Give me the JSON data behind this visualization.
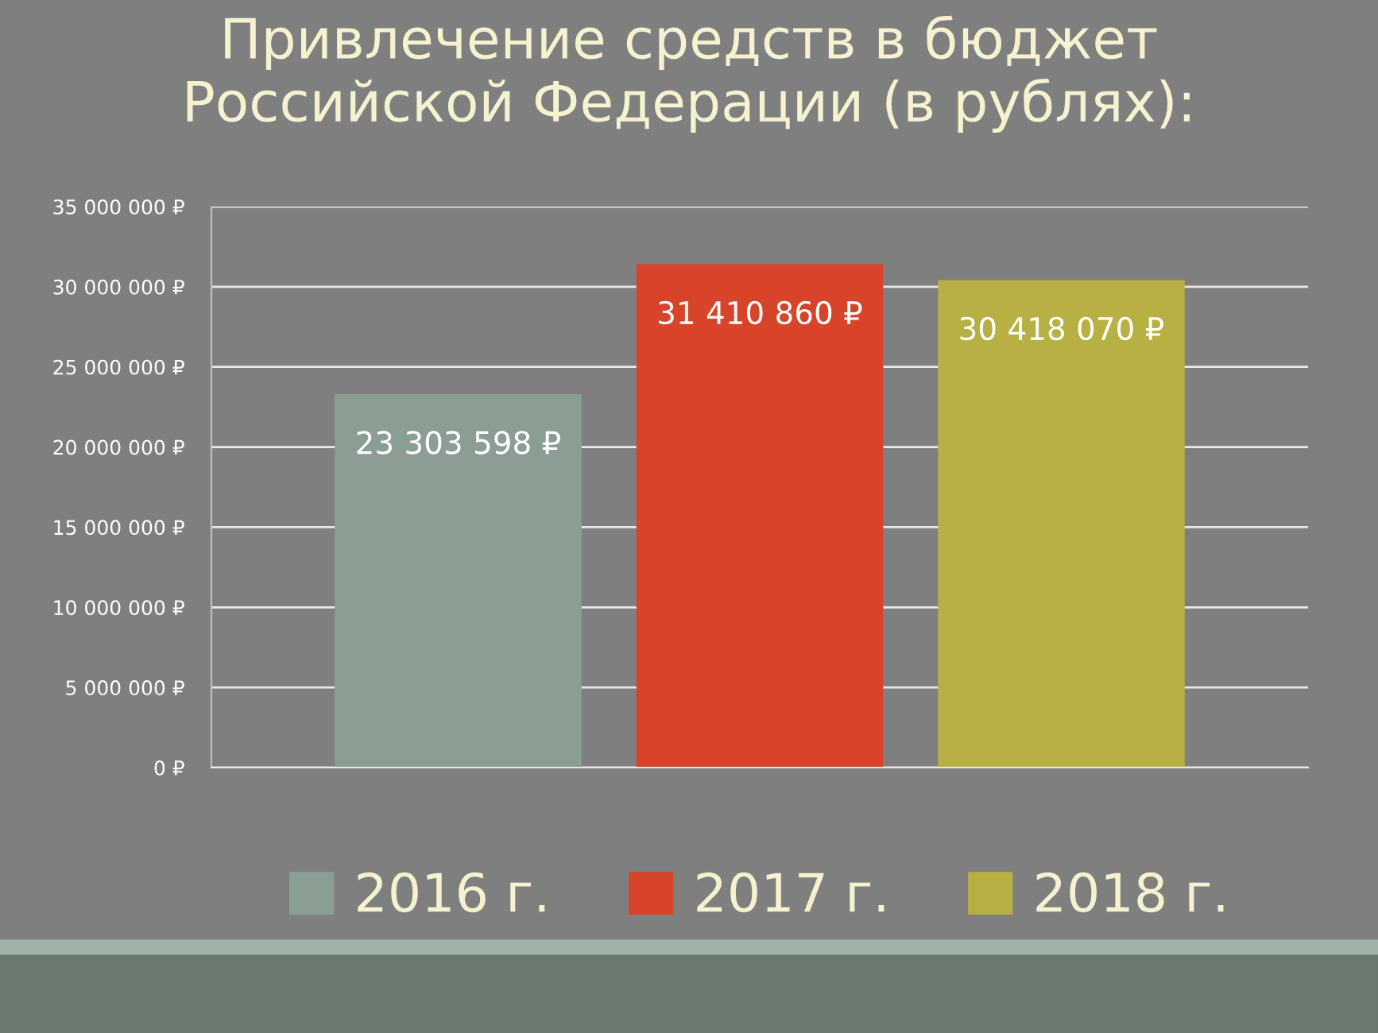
{
  "chart_data": {
    "type": "bar",
    "title": "Привлечение средств в бюджет\nРоссийской Федерации (в рублях):",
    "categories": [
      null
    ],
    "series": [
      {
        "name": "2016 г.",
        "color": "#8a9e94",
        "values": [
          23303598
        ],
        "value_labels": [
          "23 303 598 ₽"
        ]
      },
      {
        "name": "2017 г.",
        "color": "#d8442a",
        "values": [
          31410860
        ],
        "value_labels": [
          "31 410 860 ₽"
        ]
      },
      {
        "name": "2018 г.",
        "color": "#b7b042",
        "values": [
          30418070
        ],
        "value_labels": [
          "30 418 070 ₽"
        ]
      }
    ],
    "ylim": [
      0,
      35000000
    ],
    "yticks": [
      {
        "value": 0,
        "label": "0 ₽"
      },
      {
        "value": 5000000,
        "label": "5 000 000 ₽"
      },
      {
        "value": 10000000,
        "label": "10 000 000 ₽"
      },
      {
        "value": 15000000,
        "label": "15 000 000 ₽"
      },
      {
        "value": 20000000,
        "label": "20 000 000 ₽"
      },
      {
        "value": 25000000,
        "label": "25 000 000 ₽"
      },
      {
        "value": 30000000,
        "label": "30 000 000 ₽"
      },
      {
        "value": 35000000,
        "label": "35 000 000 ₽"
      }
    ],
    "grid": "y",
    "legend": "bottom"
  }
}
